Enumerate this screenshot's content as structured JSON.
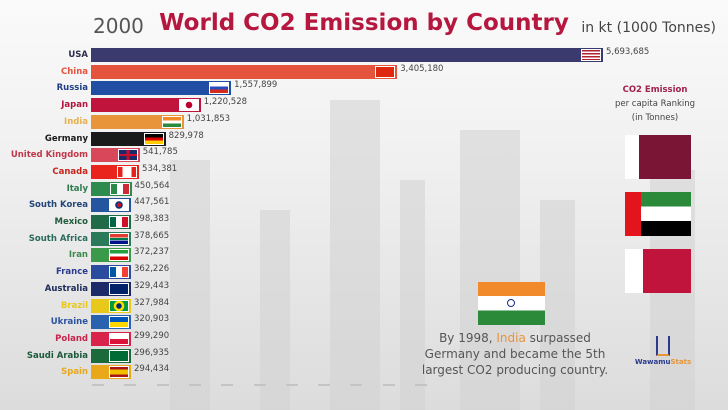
{
  "header": {
    "year": "2000",
    "title": "World CO2 Emission by Country",
    "unit": "in kt (1000 Tonnes)"
  },
  "chart_data": {
    "type": "bar",
    "title": "World CO2 Emission by Country",
    "subtitle": "2000",
    "ylabel": "in kt (1000 Tonnes)",
    "categories": [
      "USA",
      "China",
      "Russia",
      "Japan",
      "India",
      "Germany",
      "United Kingdom",
      "Canada",
      "Italy",
      "South Korea",
      "Mexico",
      "South Africa",
      "Iran",
      "France",
      "Australia",
      "Brazil",
      "Ukraine",
      "Poland",
      "Saudi Arabia",
      "Spain"
    ],
    "values": [
      5693685,
      3405180,
      1557899,
      1220528,
      1031853,
      829978,
      541785,
      534381,
      450564,
      447561,
      398383,
      378665,
      372237,
      362226,
      329443,
      327984,
      320903,
      299290,
      296935,
      294434
    ],
    "value_labels": [
      "5,693,685",
      "3,405,180",
      "1,557,899",
      "1,220,528",
      "1,031,853",
      "829,978",
      "541,785",
      "534,381",
      "450,564",
      "447,561",
      "398,383",
      "378,665",
      "372,237",
      "362,226",
      "329,443",
      "327,984",
      "320,903",
      "299,290",
      "296,935",
      "294,434"
    ],
    "colors": [
      "#3b3a6e",
      "#e4533c",
      "#1f4ea3",
      "#c0143c",
      "#e8943a",
      "#1a1a1a",
      "#d9485a",
      "#e8241c",
      "#2e8b4e",
      "#2456a0",
      "#1f6b48",
      "#2a7a5a",
      "#3a9a4a",
      "#2a4aa0",
      "#1c2a6a",
      "#e8c81a",
      "#2a62b0",
      "#d8244a",
      "#1a6a3a",
      "#e8a81a"
    ],
    "label_colors": [
      "#2c2c4a",
      "#e4533c",
      "#1f3e83",
      "#b0143c",
      "#e8b04a",
      "#1a1a1a",
      "#c0384a",
      "#c8241c",
      "#2e7b4e",
      "#24467a",
      "#1f5b3a",
      "#2a6a5a",
      "#3a8a4a",
      "#2a3a90",
      "#1c2a5a",
      "#e8c81a",
      "#2a52a0",
      "#c8244a",
      "#1a5a3a",
      "#e8a81a"
    ],
    "flags": [
      "usa-flag",
      "china-flag",
      "russia-flag",
      "japan-flag",
      "india-flag",
      "germany-flag",
      "uk-flag",
      "canada-flag",
      "italy-flag",
      "south-korea-flag",
      "mexico-flag",
      "south-africa-flag",
      "iran-flag",
      "france-flag",
      "australia-flag",
      "brazil-flag",
      "ukraine-flag",
      "poland-flag",
      "saudi-arabia-flag",
      "spain-flag"
    ],
    "xlim": [
      0,
      5693685
    ],
    "grid": false,
    "legend": "none"
  },
  "side": {
    "heading": "CO2 Emission",
    "line2": "per capita Ranking",
    "line3": "(in Tonnes)",
    "flags": [
      "qatar-flag",
      "uae-flag",
      "bahrain-flag"
    ]
  },
  "annotation": {
    "pre": "By 1998, ",
    "highlight": "India",
    "post": " surpassed Germany and became the 5th largest CO2 producing country."
  },
  "logo": {
    "text_a": "Wawamu",
    "text_b": "Stats"
  }
}
